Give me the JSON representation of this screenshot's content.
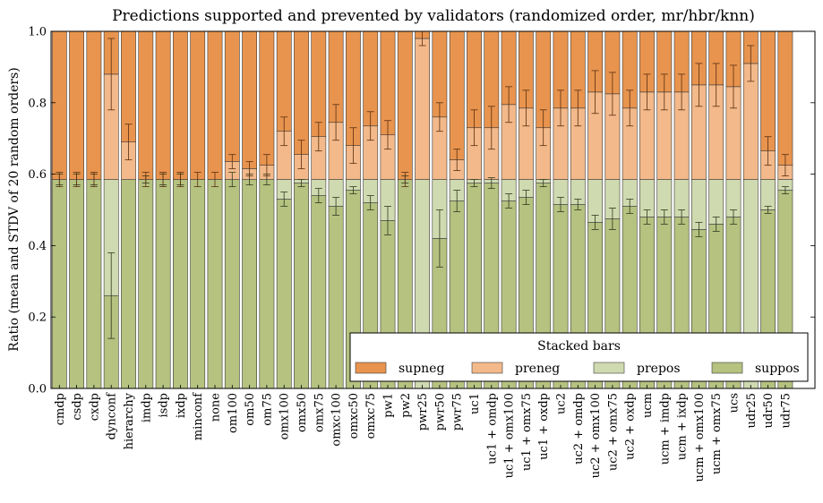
{
  "chart_data": {
    "type": "bar",
    "stacked": true,
    "title": "Predictions supported and prevented by validators (randomized order, mr/hbr/knn)",
    "ylabel": "Ratio (mean and STDV of 20 random orders)",
    "xlabel": "",
    "ylim": [
      0,
      1
    ],
    "yticks": [
      "0.0",
      "0.2",
      "0.4",
      "0.6",
      "0.8",
      "1.0"
    ],
    "legend": {
      "title": "Stacked bars",
      "placement": "lower-right",
      "columns": 4
    },
    "colors": {
      "supneg": "#e8944e",
      "preneg": "#f3b98a",
      "prepos": "#d0dab0",
      "suppos": "#b5c280"
    },
    "categories": [
      "cmdp",
      "csdp",
      "cxdp",
      "dynconf",
      "hierarchy",
      "imdp",
      "isdp",
      "ixdp",
      "minconf",
      "none",
      "om100",
      "om50",
      "om75",
      "omx100",
      "omx50",
      "omx75",
      "omxc100",
      "omxc50",
      "omxc75",
      "pw1",
      "pw2",
      "pwr25",
      "pwr50",
      "pwr75",
      "uc1",
      "uc1 + omdp",
      "uc1 + omx100",
      "uc1 + omx75",
      "uc1 + oxdp",
      "uc2",
      "uc2 + omdp",
      "uc2 + omx100",
      "uc2 + omx75",
      "uc2 + oxdp",
      "ucm",
      "ucm + imdp",
      "ucm + ixdp",
      "ucm + omx100",
      "ucm + omx75",
      "ucs",
      "udr25",
      "udr50",
      "udr75"
    ],
    "series": [
      {
        "name": "suppos",
        "values": [
          0.585,
          0.585,
          0.585,
          0.26,
          0.585,
          0.585,
          0.585,
          0.585,
          0.585,
          0.585,
          0.585,
          0.585,
          0.585,
          0.53,
          0.575,
          0.54,
          0.51,
          0.555,
          0.52,
          0.47,
          0.585,
          0.0,
          0.42,
          0.525,
          0.575,
          0.575,
          0.525,
          0.535,
          0.575,
          0.515,
          0.515,
          0.465,
          0.475,
          0.51,
          0.48,
          0.48,
          0.48,
          0.445,
          0.46,
          0.48,
          0.0,
          0.5,
          0.555
        ],
        "err": [
          0.015,
          0.015,
          0.015,
          0.12,
          0.0,
          0.01,
          0.015,
          0.015,
          0.0,
          0.0,
          0.02,
          0.015,
          0.015,
          0.02,
          0.01,
          0.02,
          0.025,
          0.01,
          0.02,
          0.04,
          0.01,
          0.0,
          0.08,
          0.03,
          0.01,
          0.015,
          0.02,
          0.02,
          0.01,
          0.02,
          0.015,
          0.02,
          0.03,
          0.02,
          0.02,
          0.02,
          0.02,
          0.02,
          0.02,
          0.02,
          0.0,
          0.01,
          0.01
        ]
      },
      {
        "name": "prepos",
        "values": [
          0.0,
          0.0,
          0.0,
          0.325,
          0.0,
          0.0,
          0.0,
          0.0,
          0.0,
          0.0,
          0.0,
          0.0,
          0.0,
          0.055,
          0.01,
          0.045,
          0.075,
          0.03,
          0.065,
          0.115,
          0.0,
          0.585,
          0.165,
          0.06,
          0.01,
          0.01,
          0.06,
          0.05,
          0.01,
          0.07,
          0.07,
          0.12,
          0.11,
          0.075,
          0.105,
          0.105,
          0.105,
          0.14,
          0.125,
          0.105,
          0.585,
          0.085,
          0.03
        ],
        "err": []
      },
      {
        "name": "preneg",
        "values": [
          0.0,
          0.0,
          0.0,
          0.295,
          0.105,
          0.0,
          0.0,
          0.0,
          0.0,
          0.0,
          0.05,
          0.03,
          0.04,
          0.135,
          0.07,
          0.12,
          0.16,
          0.095,
          0.15,
          0.125,
          0.0,
          0.395,
          0.175,
          0.055,
          0.145,
          0.145,
          0.21,
          0.2,
          0.145,
          0.2,
          0.2,
          0.245,
          0.24,
          0.2,
          0.245,
          0.245,
          0.245,
          0.265,
          0.265,
          0.26,
          0.325,
          0.08,
          0.04
        ],
        "err": [
          0.02,
          0.02,
          0.02,
          0.1,
          0.05,
          0.02,
          0.02,
          0.02,
          0.02,
          0.02,
          0.02,
          0.02,
          0.03,
          0.04,
          0.04,
          0.04,
          0.05,
          0.05,
          0.04,
          0.04,
          0.02,
          0.02,
          0.04,
          0.03,
          0.05,
          0.06,
          0.05,
          0.05,
          0.05,
          0.05,
          0.05,
          0.06,
          0.06,
          0.05,
          0.05,
          0.05,
          0.05,
          0.06,
          0.06,
          0.06,
          0.05,
          0.04,
          0.03
        ]
      },
      {
        "name": "supneg",
        "values": [
          0.415,
          0.415,
          0.415,
          0.12,
          0.31,
          0.415,
          0.415,
          0.415,
          0.415,
          0.415,
          0.365,
          0.385,
          0.375,
          0.28,
          0.345,
          0.295,
          0.255,
          0.32,
          0.265,
          0.29,
          0.415,
          0.02,
          0.24,
          0.36,
          0.27,
          0.27,
          0.205,
          0.215,
          0.27,
          0.215,
          0.215,
          0.17,
          0.175,
          0.215,
          0.17,
          0.17,
          0.17,
          0.15,
          0.15,
          0.155,
          0.09,
          0.335,
          0.375
        ],
        "err": []
      }
    ]
  }
}
